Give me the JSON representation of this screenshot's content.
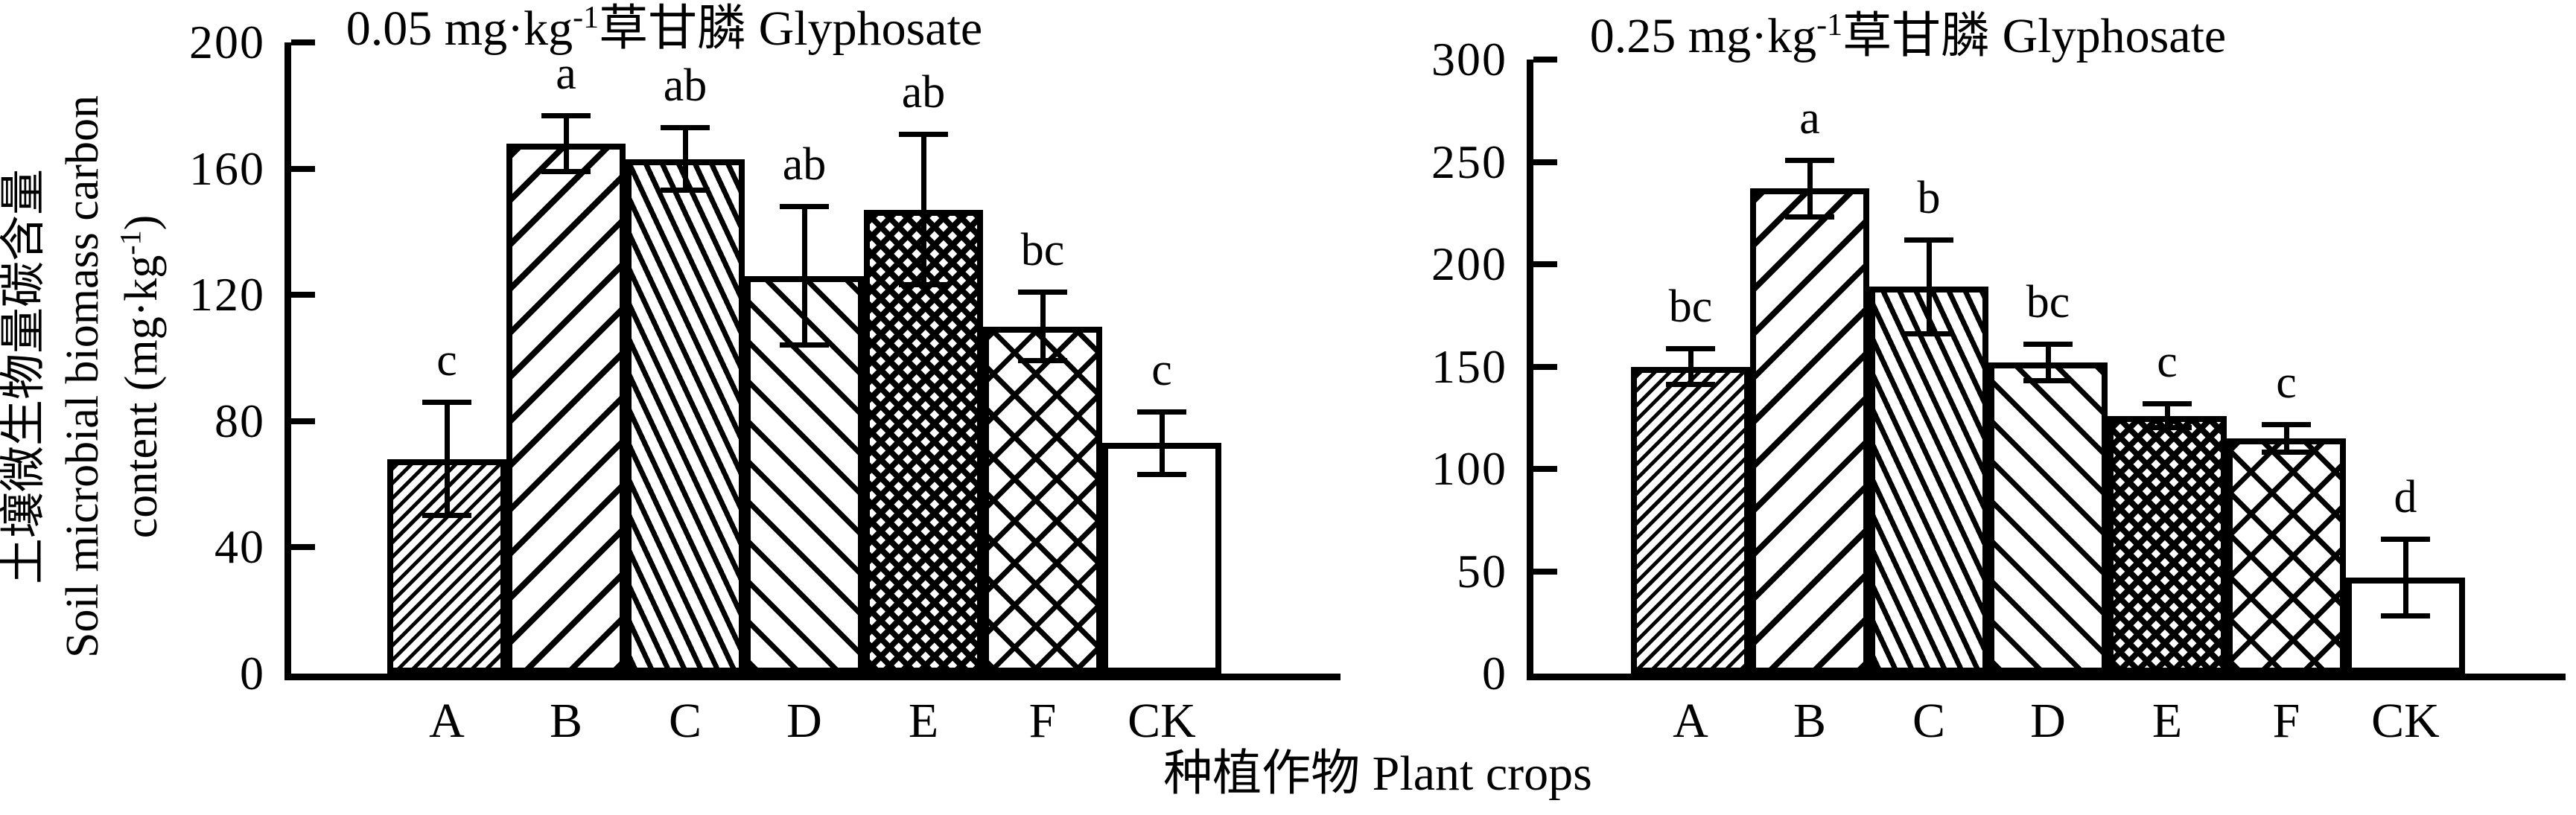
{
  "y_axis_label": {
    "line1": "土壤微生物量碳含量",
    "line2": "Soil microbial biomass carbon",
    "line3_pre": "content (mg·kg",
    "line3_sup": "-1",
    "line3_post": ")"
  },
  "x_axis_label": "种植作物 Plant crops",
  "colors": {
    "stroke": "#000000",
    "bar_fill": "#ffffff",
    "background": "#ffffff"
  },
  "chart_data": [
    {
      "type": "bar",
      "title": {
        "pre": "0.05 mg·kg",
        "sup": "-1",
        "post": "草甘膦 Glyphosate"
      },
      "ylim": [
        0,
        200
      ],
      "yticks": [
        0,
        40,
        80,
        120,
        160,
        200
      ],
      "categories": [
        "A",
        "B",
        "C",
        "D",
        "E",
        "F",
        "CK"
      ],
      "values": [
        68,
        168,
        163,
        126,
        147,
        110,
        73
      ],
      "errors": [
        18,
        9,
        10,
        22,
        24,
        11,
        10
      ],
      "sig_letters": [
        "c",
        "a",
        "ab",
        "ab",
        "ab",
        "bc",
        "c"
      ],
      "patterns": [
        "diagonal-thin",
        "diagonal-wide",
        "diagonal-steep",
        "diagonal-medium",
        "crosshatch-dense",
        "crosshatch-open",
        "plain"
      ],
      "grid": false,
      "legend": "none"
    },
    {
      "type": "bar",
      "title": {
        "pre": "0.25 mg·kg",
        "sup": "-1",
        "post": "草甘膦 Glyphosate"
      },
      "ylim": [
        0,
        300
      ],
      "yticks": [
        0,
        50,
        100,
        150,
        200,
        250,
        300
      ],
      "categories": [
        "A",
        "B",
        "C",
        "D",
        "E",
        "F",
        "CK"
      ],
      "values": [
        150,
        237,
        189,
        152,
        126,
        115,
        47
      ],
      "errors": [
        9,
        14,
        23,
        9,
        6,
        7,
        19
      ],
      "sig_letters": [
        "bc",
        "a",
        "b",
        "bc",
        "c",
        "c",
        "d"
      ],
      "patterns": [
        "diagonal-thin",
        "diagonal-wide",
        "diagonal-steep",
        "diagonal-medium",
        "crosshatch-dense",
        "crosshatch-open",
        "plain"
      ],
      "grid": false,
      "legend": "none"
    }
  ]
}
